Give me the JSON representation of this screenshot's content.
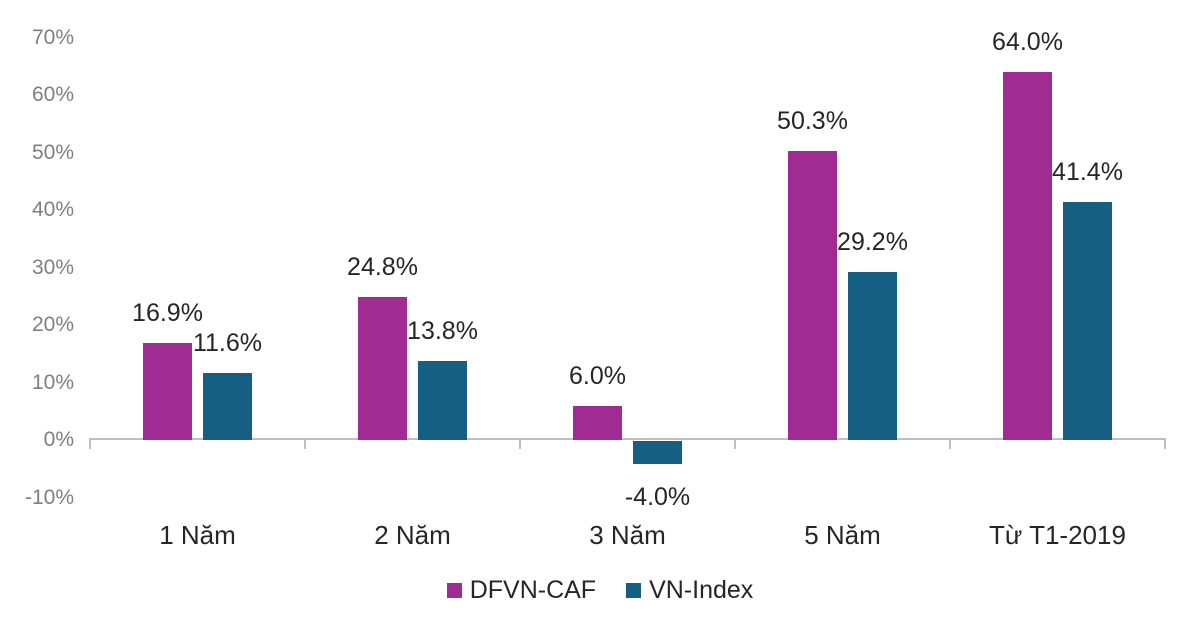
{
  "chart_data": {
    "type": "bar",
    "title": "",
    "categories": [
      "1 Năm",
      "2 Năm",
      "3 Năm",
      "5 Năm",
      "Từ T1-2019"
    ],
    "series": [
      {
        "name": "DFVN-CAF",
        "color": "#A02B93",
        "values": [
          16.9,
          24.8,
          6.0,
          50.3,
          64.0
        ],
        "labels": [
          "16.9%",
          "24.8%",
          "6.0%",
          "50.3%",
          "64.0%"
        ]
      },
      {
        "name": "VN-Index",
        "color": "#156082",
        "values": [
          11.6,
          13.8,
          -4.0,
          29.2,
          41.4
        ],
        "labels": [
          "11.6%",
          "13.8%",
          "-4.0%",
          "29.2%",
          "41.4%"
        ]
      }
    ],
    "y_axis": {
      "min": -10,
      "max": 70,
      "step": 10,
      "tick_values": [
        70,
        60,
        50,
        40,
        30,
        20,
        10,
        0,
        -10
      ],
      "tick_labels": [
        "70%",
        "60%",
        "50%",
        "40%",
        "30%",
        "20%",
        "10%",
        "0%",
        "-10%"
      ]
    },
    "legend_position": "bottom",
    "grid": false,
    "colors": {
      "axis_line": "#BFBFBF",
      "y_tick_label": "#7F7F7F",
      "data_label": "#262626",
      "category_label": "#262626",
      "background": "#FFFFFF"
    }
  }
}
